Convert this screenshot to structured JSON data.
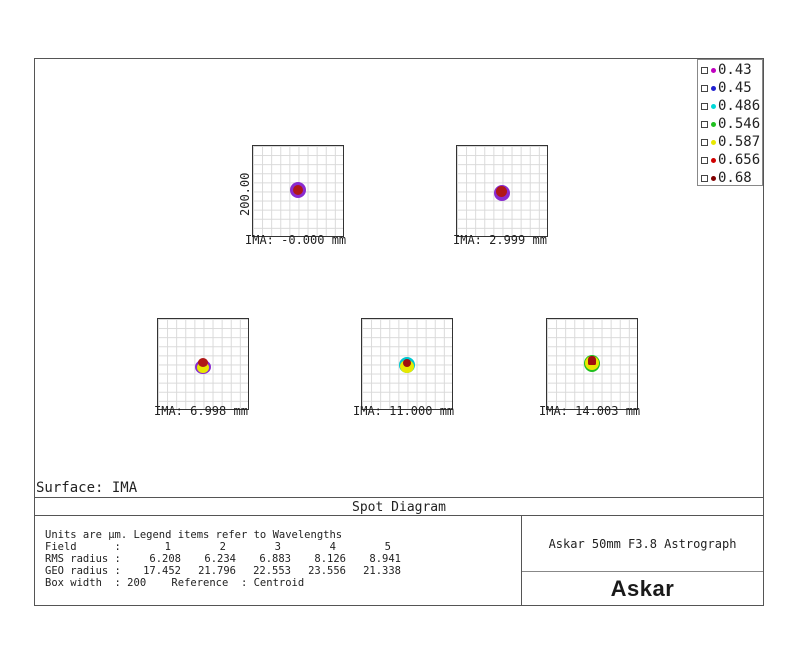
{
  "title": "Spot Diagram",
  "surface_label": "Surface: IMA",
  "box_width_label": "200.00",
  "fields": [
    {
      "label": "IMA: -0.000 mm"
    },
    {
      "label": "IMA: 2.999 mm"
    },
    {
      "label": "IMA: 6.998 mm"
    },
    {
      "label": "IMA: 11.000 mm"
    },
    {
      "label": "IMA: 14.003 mm"
    }
  ],
  "legend": [
    {
      "label": "0.43",
      "color": "#c000c0"
    },
    {
      "label": "0.45",
      "color": "#2020d0"
    },
    {
      "label": "0.486",
      "color": "#00d8d8"
    },
    {
      "label": "0.546",
      "color": "#20c020"
    },
    {
      "label": "0.587",
      "color": "#e8e800"
    },
    {
      "label": "0.656",
      "color": "#d00000"
    },
    {
      "label": "0.68",
      "color": "#800000"
    }
  ],
  "info": {
    "line1": "Units are µm. Legend items refer to Wavelengths",
    "field_label": "Field      :",
    "rms_label": "RMS radius :",
    "geo_label": "GEO radius :",
    "box_width_line": "Box width  : 200    Reference  : Centroid",
    "field_numbers": [
      "1",
      "2",
      "3",
      "4",
      "5"
    ],
    "rms_values": [
      "6.208",
      "6.234",
      "6.883",
      "8.126",
      "8.941"
    ],
    "geo_values": [
      "17.452",
      "21.796",
      "22.553",
      "23.556",
      "21.338"
    ]
  },
  "scope_name": "Askar 50mm F3.8 Astrograph",
  "brand": "Askar"
}
